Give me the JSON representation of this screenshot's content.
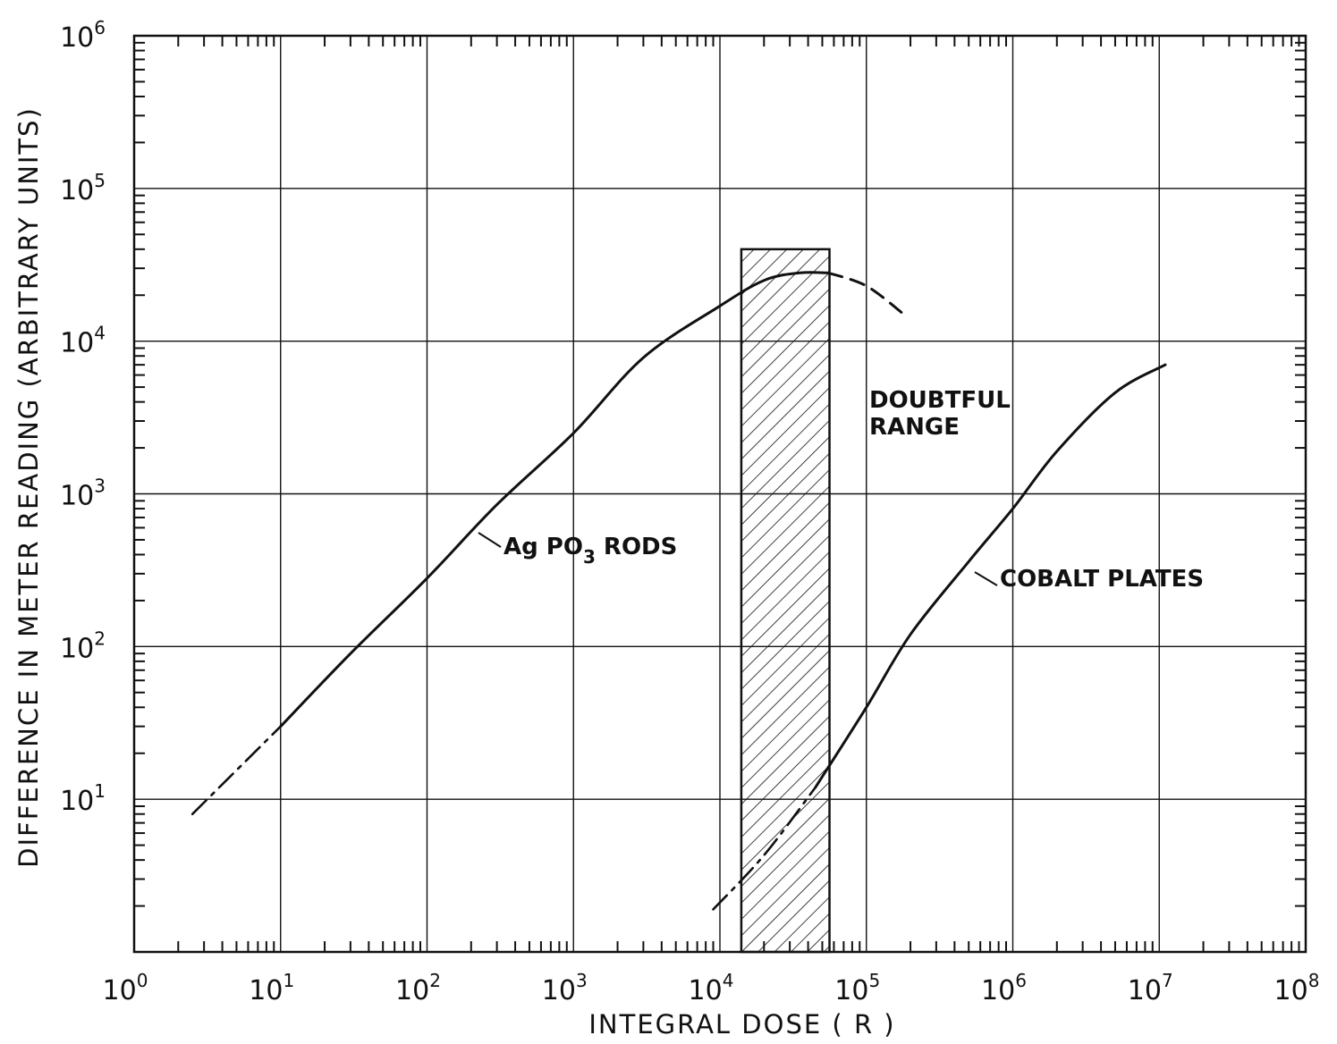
{
  "chart_data": {
    "type": "line",
    "xlabel": "INTEGRAL DOSE ( R )",
    "ylabel": "DIFFERENCE IN METER READING (ARBITRARY UNITS)",
    "xscale": "log",
    "yscale": "log",
    "xlim": [
      1,
      100000000
    ],
    "ylim": [
      1,
      1000000
    ],
    "grid": true,
    "x_ticks": [
      {
        "base": "10",
        "exp": "0"
      },
      {
        "base": "10",
        "exp": "1"
      },
      {
        "base": "10",
        "exp": "2"
      },
      {
        "base": "10",
        "exp": "3"
      },
      {
        "base": "10",
        "exp": "4"
      },
      {
        "base": "10",
        "exp": "5"
      },
      {
        "base": "10",
        "exp": "6"
      },
      {
        "base": "10",
        "exp": "7"
      },
      {
        "base": "10",
        "exp": "8"
      }
    ],
    "y_ticks": [
      {
        "base": "10",
        "exp": "1"
      },
      {
        "base": "10",
        "exp": "2"
      },
      {
        "base": "10",
        "exp": "3"
      },
      {
        "base": "10",
        "exp": "4"
      },
      {
        "base": "10",
        "exp": "5"
      },
      {
        "base": "10",
        "exp": "6"
      }
    ],
    "series": [
      {
        "name": "AgPO3 RODS",
        "label_main": "Ag PO",
        "label_sub": "3",
        "label_tail": " RODS",
        "extrapolated_low": [
          [
            2.5,
            8
          ],
          [
            10,
            30
          ]
        ],
        "measured": [
          [
            10,
            30
          ],
          [
            30,
            90
          ],
          [
            100,
            280
          ],
          [
            300,
            850
          ],
          [
            1000,
            2500
          ],
          [
            3000,
            7800
          ],
          [
            10000,
            17000
          ],
          [
            20000,
            25000
          ],
          [
            35000,
            28000
          ],
          [
            55000,
            28000
          ]
        ],
        "extrapolated_high": [
          [
            55000,
            28000
          ],
          [
            100000,
            23000
          ],
          [
            180000,
            15000
          ]
        ]
      },
      {
        "name": "COBALT PLATES",
        "label": "COBALT PLATES",
        "extrapolated_low": [
          [
            9000,
            1.9
          ],
          [
            20000,
            4.3
          ],
          [
            45000,
            12
          ]
        ],
        "measured": [
          [
            45000,
            12
          ],
          [
            100000,
            40
          ],
          [
            200000,
            120
          ],
          [
            500000,
            360
          ],
          [
            1000000,
            800
          ],
          [
            2000000,
            1900
          ],
          [
            5000000,
            4600
          ],
          [
            11000000,
            7000
          ]
        ]
      }
    ],
    "doubtful_range": {
      "label_line1": "DOUBTFUL",
      "label_line2": "RANGE",
      "x": [
        14000,
        56000
      ],
      "y_top": 40000
    }
  }
}
